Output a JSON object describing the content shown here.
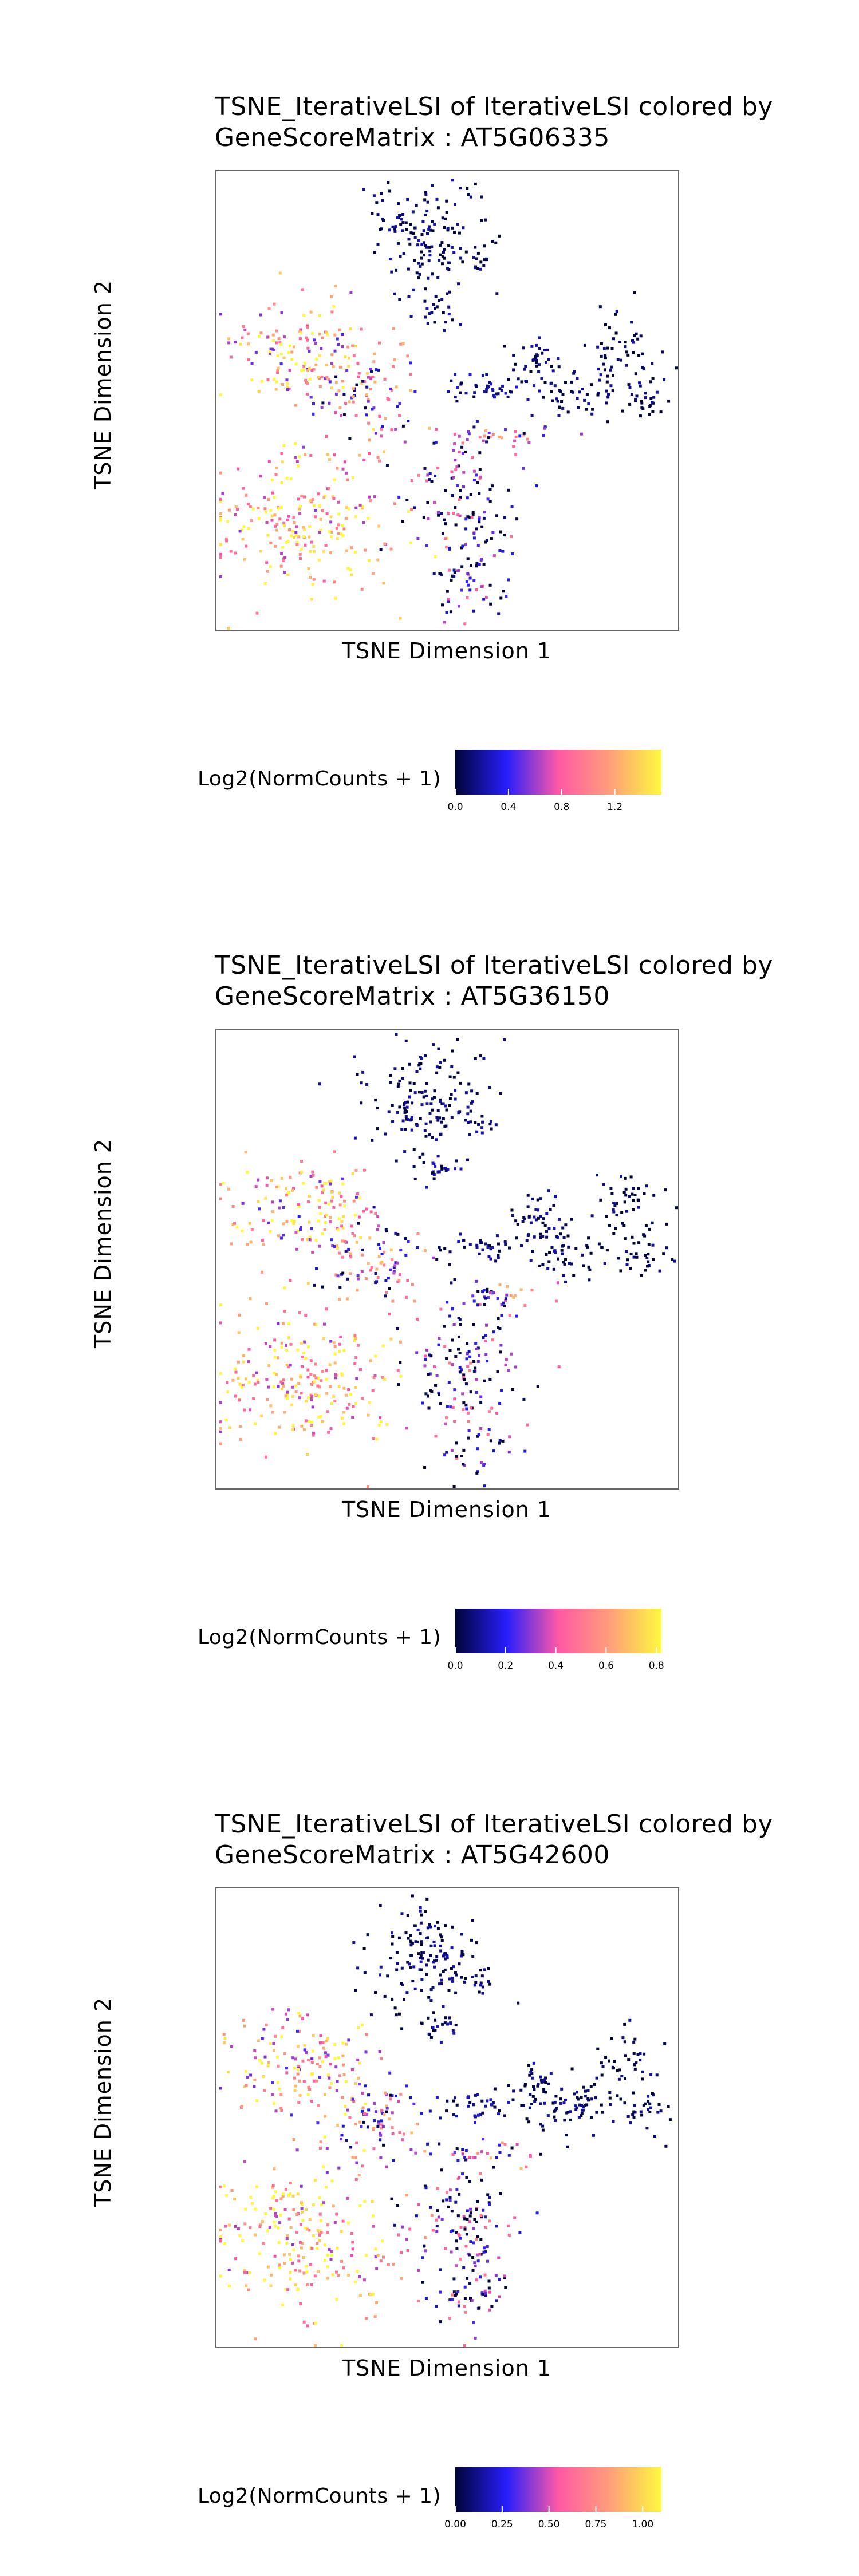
{
  "colors": {
    "scale": [
      "#000436",
      "#271efd",
      "#ff59a5",
      "#ff9e7a",
      "#fff83e"
    ],
    "frame": "#666666"
  },
  "clusters_note_removed": true,
  "chart_data": [
    {
      "type": "scatter",
      "title_line1": "TSNE_IterativeLSI of IterativeLSI colored by",
      "title_line2": "GeneScoreMatrix : AT5G06335",
      "xlabel": "TSNE Dimension 1",
      "ylabel": "TSNE Dimension 2",
      "legend_title": "Log2(NormCounts + 1)",
      "color_range": [
        0,
        1.55
      ],
      "color_ticks": [
        "0.0",
        "0.4",
        "0.8",
        "1.2"
      ],
      "color_tick_values": [
        0,
        0.4,
        0.8,
        1.2
      ],
      "grid": false,
      "legend_position": "bottom",
      "seed": 11
    },
    {
      "type": "scatter",
      "title_line1": "TSNE_IterativeLSI of IterativeLSI colored by",
      "title_line2": "GeneScoreMatrix : AT5G36150",
      "xlabel": "TSNE Dimension 1",
      "ylabel": "TSNE Dimension 2",
      "legend_title": "Log2(NormCounts + 1)",
      "color_range": [
        0,
        0.82
      ],
      "color_ticks": [
        "0.0",
        "0.2",
        "0.4",
        "0.6",
        "0.8"
      ],
      "color_tick_values": [
        0,
        0.2,
        0.4,
        0.6,
        0.8
      ],
      "grid": false,
      "legend_position": "bottom",
      "seed": 23
    },
    {
      "type": "scatter",
      "title_line1": "TSNE_IterativeLSI of IterativeLSI colored by",
      "title_line2": "GeneScoreMatrix : AT5G42600",
      "xlabel": "TSNE Dimension 1",
      "ylabel": "TSNE Dimension 2",
      "legend_title": "Log2(NormCounts + 1)",
      "color_range": [
        0,
        1.1
      ],
      "color_ticks": [
        "0.00",
        "0.25",
        "0.50",
        "0.75",
        "1.00"
      ],
      "color_tick_values": [
        0,
        0.25,
        0.5,
        0.75,
        1.0
      ],
      "grid": false,
      "legend_position": "bottom",
      "seed": 37
    }
  ]
}
